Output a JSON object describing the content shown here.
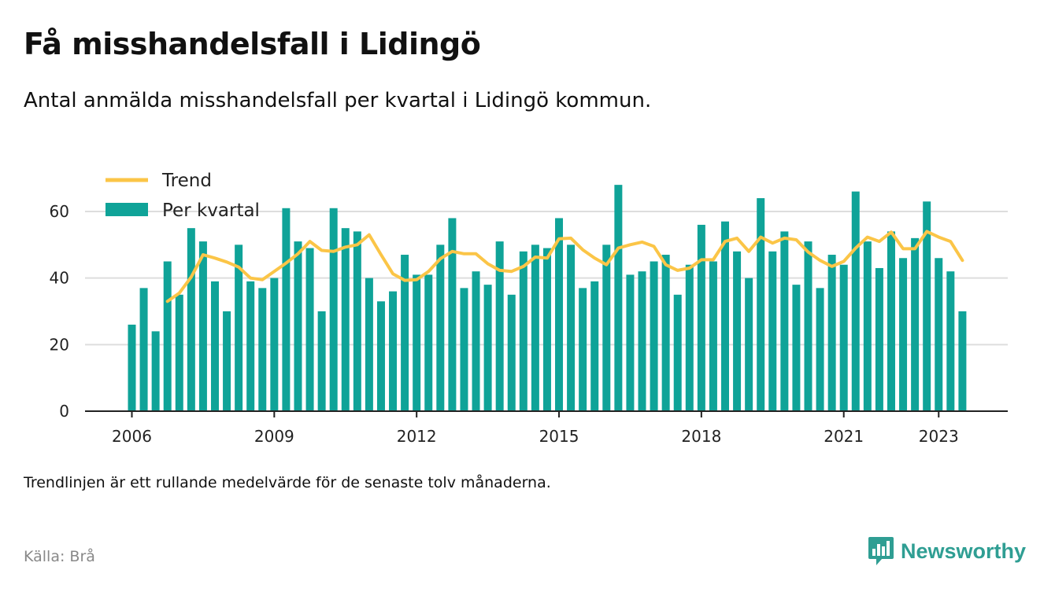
{
  "header": {
    "title": "Få misshandelsfall i Lidingö",
    "subtitle": "Antal anmälda misshandelsfall per kvartal i Lidingö kommun."
  },
  "footer": {
    "note": "Trendlinjen är ett rullande medelvärde för de senaste tolv månaderna.",
    "source": "Källa: Brå",
    "brand": "Newsworthy"
  },
  "colors": {
    "bar": "#0fa398",
    "trend": "#fbc547",
    "grid": "#dddddd",
    "axis": "#222222",
    "brand": "#2f9e93"
  },
  "chart_data": {
    "type": "bar",
    "legend_position": "top-left",
    "grid": true,
    "ylim": [
      0,
      70
    ],
    "y_ticks": [
      0,
      20,
      40,
      60
    ],
    "x_ticks": [
      "2006",
      "2009",
      "2012",
      "2015",
      "2018",
      "2021",
      "2023"
    ],
    "categories": [
      "2006 Q1",
      "2006 Q2",
      "2006 Q3",
      "2006 Q4",
      "2007 Q1",
      "2007 Q2",
      "2007 Q3",
      "2007 Q4",
      "2008 Q1",
      "2008 Q2",
      "2008 Q3",
      "2008 Q4",
      "2009 Q1",
      "2009 Q2",
      "2009 Q3",
      "2009 Q4",
      "2010 Q1",
      "2010 Q2",
      "2010 Q3",
      "2010 Q4",
      "2011 Q1",
      "2011 Q2",
      "2011 Q3",
      "2011 Q4",
      "2012 Q1",
      "2012 Q2",
      "2012 Q3",
      "2012 Q4",
      "2013 Q1",
      "2013 Q2",
      "2013 Q3",
      "2013 Q4",
      "2014 Q1",
      "2014 Q2",
      "2014 Q3",
      "2014 Q4",
      "2015 Q1",
      "2015 Q2",
      "2015 Q3",
      "2015 Q4",
      "2016 Q1",
      "2016 Q2",
      "2016 Q3",
      "2016 Q4",
      "2017 Q1",
      "2017 Q2",
      "2017 Q3",
      "2017 Q4",
      "2018 Q1",
      "2018 Q2",
      "2018 Q3",
      "2018 Q4",
      "2019 Q1",
      "2019 Q2",
      "2019 Q3",
      "2019 Q4",
      "2020 Q1",
      "2020 Q2",
      "2020 Q3",
      "2020 Q4",
      "2021 Q1",
      "2021 Q2",
      "2021 Q3",
      "2021 Q4",
      "2022 Q1",
      "2022 Q2",
      "2022 Q3",
      "2022 Q4",
      "2023 Q1",
      "2023 Q2",
      "2023 Q3"
    ],
    "series": [
      {
        "name": "Per kvartal",
        "type": "bar",
        "values": [
          26,
          37,
          24,
          45,
          35,
          55,
          51,
          39,
          30,
          50,
          39,
          37,
          40,
          61,
          51,
          49,
          30,
          61,
          55,
          54,
          40,
          33,
          36,
          47,
          41,
          41,
          50,
          58,
          37,
          42,
          38,
          51,
          35,
          48,
          50,
          49,
          58,
          50,
          37,
          39,
          50,
          68,
          41,
          42,
          45,
          47,
          35,
          44,
          56,
          45,
          57,
          48,
          40,
          64,
          48,
          54,
          38,
          51,
          37,
          47,
          44,
          66,
          51,
          43,
          54,
          46,
          52,
          63,
          46,
          42,
          30
        ]
      },
      {
        "name": "Trend",
        "type": "line",
        "values": [
          null,
          null,
          null,
          33,
          35.5,
          40.3,
          47.0,
          46.0,
          44.8,
          43.3,
          40.0,
          39.5,
          42.0,
          44.5,
          47.3,
          51.0,
          48.3,
          48.0,
          49.3,
          50.0,
          53.0,
          47.0,
          41.3,
          39.3,
          39.5,
          42.0,
          45.8,
          48.0,
          47.3,
          47.3,
          44.3,
          42.3,
          42.0,
          43.5,
          46.3,
          46.0,
          51.8,
          52.0,
          48.5,
          46.0,
          44.0,
          49.0,
          50.0,
          50.8,
          49.5,
          44.0,
          42.3,
          43.0,
          45.5,
          45.5,
          51.0,
          52.0,
          48.0,
          52.3,
          50.5,
          52.0,
          51.5,
          47.8,
          45.3,
          43.5,
          45.0,
          49.0,
          52.3,
          51.0,
          53.8,
          48.8,
          48.8,
          54.0,
          52.3,
          51.0,
          45.3
        ]
      }
    ]
  }
}
